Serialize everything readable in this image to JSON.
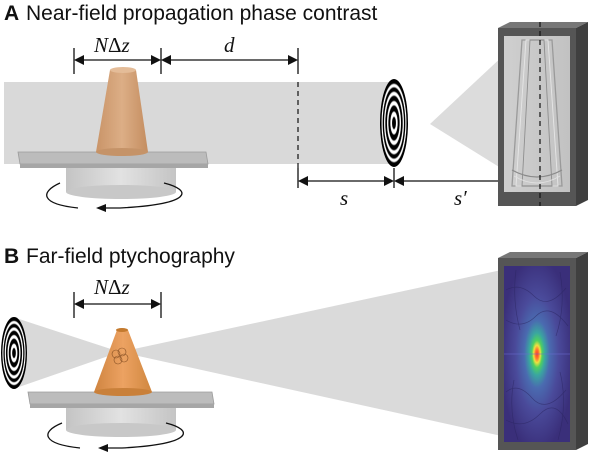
{
  "panels": [
    {
      "letter": "A",
      "title": "Near-field propagation phase contrast",
      "labels": {
        "slab_width": "NΔz",
        "slab_width_N": "N",
        "slab_width_delta": "Δ",
        "slab_width_z": "z",
        "object_to_plane": "d",
        "source_to_plane": "s",
        "plane_to_detector": "s′"
      }
    },
    {
      "letter": "B",
      "title": "Far-field ptychography",
      "labels": {
        "slab_width": "NΔz",
        "slab_width_N": "N",
        "slab_width_delta": "Δ",
        "slab_width_z": "z"
      }
    }
  ],
  "colors": {
    "beam": "#d9d9d9",
    "stage": "#c0c0c0",
    "cone_a": "#d4a47c",
    "cone_b": "#e09a55",
    "detector_frame": "#555555",
    "hologram_bg": "#c9c9c9",
    "diffraction_bg": "#4a3f8c"
  }
}
